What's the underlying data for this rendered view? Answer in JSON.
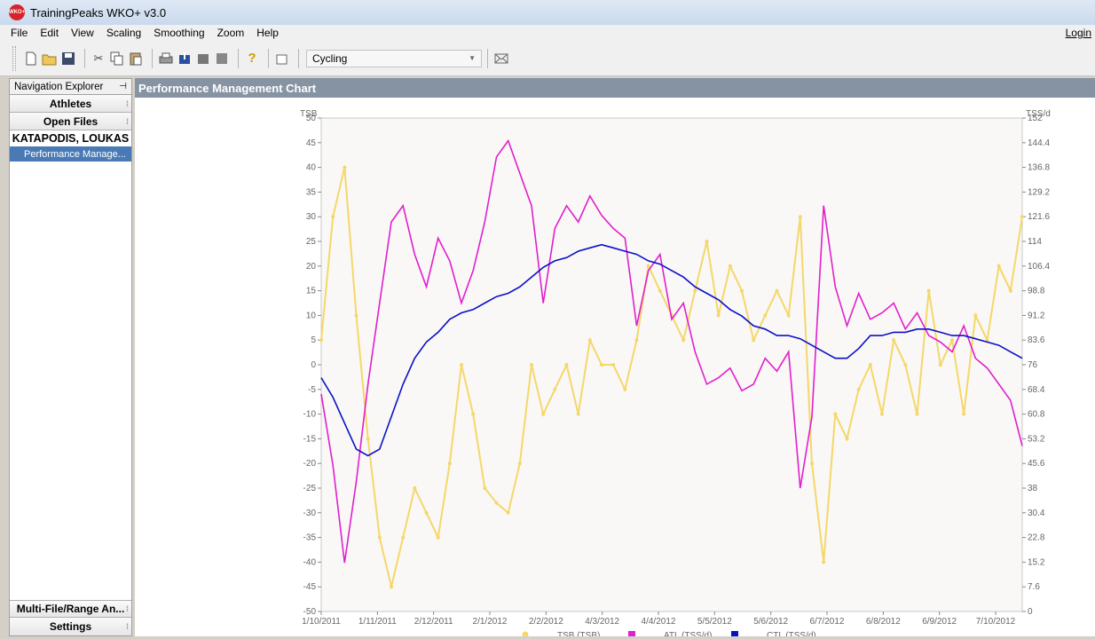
{
  "window": {
    "title": "TrainingPeaks WKO+ v3.0",
    "logo": "WKO+"
  },
  "menu": [
    "File",
    "Edit",
    "View",
    "Scaling",
    "Smoothing",
    "Zoom",
    "Help"
  ],
  "login_label": "Login",
  "toolbar": {
    "icons": [
      "new-file-icon",
      "open-folder-icon",
      "save-icon",
      "cut-icon",
      "copy-icon",
      "paste-icon",
      "print-icon",
      "import-icon",
      "device-icon",
      "stop-icon",
      "help-icon",
      "new-chart-icon",
      "mail-icon"
    ],
    "sport": "Cycling"
  },
  "sidebar": {
    "header": "Navigation Explorer",
    "sections": {
      "athletes": "Athletes",
      "open_files": "Open Files",
      "multi_file": "Multi-File/Range An...",
      "settings": "Settings"
    },
    "athlete_name": "KATAPODIS, LOUKAS",
    "selected_file": "Performance Manage..."
  },
  "panel": {
    "title": "Performance Management Chart"
  },
  "chart_data": {
    "type": "line",
    "title": "",
    "y_left_label": "TSB",
    "y_right_label": "TSS/d",
    "y_left_range": [
      -50,
      50
    ],
    "y_left_ticks": [
      "50",
      "45",
      "40",
      "35",
      "30",
      "25",
      "20",
      "15",
      "10",
      "5",
      "0",
      "-5",
      "-10",
      "-15",
      "-20",
      "-25",
      "-30",
      "-35",
      "-40",
      "-45",
      "-50"
    ],
    "y_right_range": [
      0,
      152
    ],
    "y_right_ticks": [
      "152",
      "144.4",
      "136.8",
      "129.2",
      "121.6",
      "114",
      "106.4",
      "98.8",
      "91.2",
      "83.6",
      "76",
      "68.4",
      "60.8",
      "53.2",
      "45.6",
      "38",
      "30.4",
      "22.8",
      "15.2",
      "7.6",
      "0"
    ],
    "x_ticks": [
      "1/10/2011",
      "1/11/2011",
      "2/12/2011",
      "2/1/2012",
      "2/2/2012",
      "4/3/2012",
      "4/4/2012",
      "5/5/2012",
      "5/6/2012",
      "6/7/2012",
      "6/8/2012",
      "6/9/2012",
      "7/10/2012"
    ],
    "legend": [
      {
        "name": "TSB (TSB)",
        "color": "#f5d76a"
      },
      {
        "name": "ATL (TSS/d)",
        "color": "#e01fce"
      },
      {
        "name": "CTL (TSS/d)",
        "color": "#0a10c8"
      }
    ],
    "series": [
      {
        "name": "CTL (TSS/d)",
        "axis": "right",
        "color": "#0a10c8",
        "values": [
          72,
          66,
          58,
          50,
          48,
          50,
          60,
          70,
          78,
          83,
          86,
          90,
          92,
          93,
          95,
          97,
          98,
          100,
          103,
          106,
          108,
          109,
          111,
          112,
          113,
          112,
          111,
          110,
          108,
          107,
          105,
          103,
          100,
          98,
          96,
          93,
          91,
          88,
          87,
          85,
          85,
          84,
          82,
          80,
          78,
          78,
          81,
          85,
          85,
          86,
          86,
          87,
          87,
          86,
          85,
          85,
          84,
          83,
          82,
          80,
          78
        ]
      },
      {
        "name": "ATL (TSS/d)",
        "axis": "right",
        "color": "#e01fce",
        "values": [
          67,
          45,
          15,
          40,
          70,
          95,
          120,
          125,
          110,
          100,
          115,
          108,
          95,
          105,
          120,
          140,
          145,
          135,
          125,
          95,
          118,
          125,
          120,
          128,
          122,
          118,
          115,
          88,
          105,
          110,
          90,
          95,
          80,
          70,
          72,
          75,
          68,
          70,
          78,
          74,
          80,
          38,
          60,
          125,
          100,
          88,
          98,
          90,
          92,
          95,
          87,
          92,
          85,
          83,
          80,
          88,
          78,
          75,
          70,
          65,
          51
        ]
      },
      {
        "name": "TSB (TSB)",
        "axis": "left",
        "color": "#f5d76a",
        "values": [
          5,
          30,
          40,
          10,
          -15,
          -35,
          -45,
          -35,
          -25,
          -30,
          -35,
          -20,
          0,
          -10,
          -25,
          -28,
          -30,
          -20,
          0,
          -10,
          -5,
          0,
          -10,
          5,
          0,
          0,
          -5,
          5,
          20,
          15,
          10,
          5,
          15,
          25,
          10,
          20,
          15,
          5,
          10,
          15,
          10,
          30,
          -20,
          -40,
          -10,
          -15,
          -5,
          0,
          -10,
          5,
          0,
          -10,
          15,
          0,
          5,
          -10,
          10,
          5,
          20,
          15,
          30
        ]
      }
    ]
  }
}
